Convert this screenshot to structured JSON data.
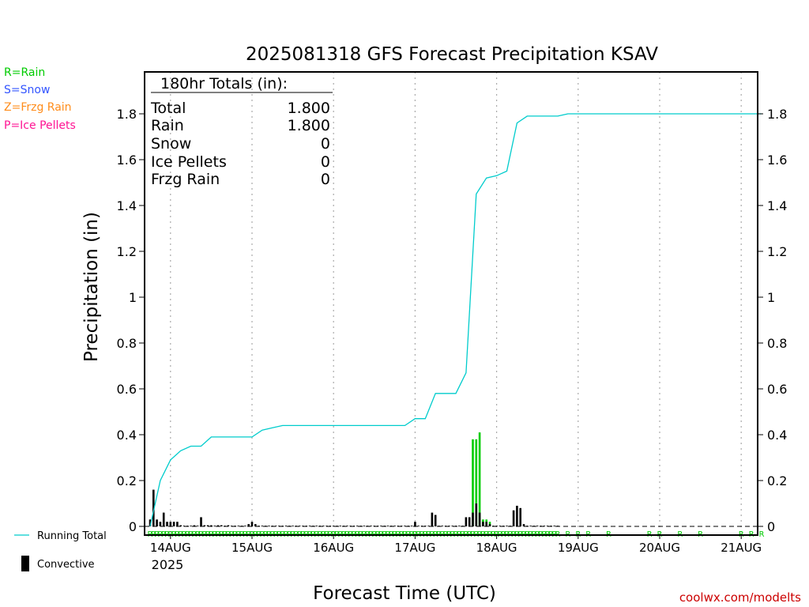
{
  "chart_data": {
    "type": "bar",
    "title": "2025081318 GFS Forecast Precipitation KSAV",
    "xlabel": "Forecast Time (UTC)",
    "ylabel": "Precipitation (in)",
    "ylim": [
      0,
      1.99
    ],
    "y_ticks": [
      "0",
      "0.2",
      "0.4",
      "0.6",
      "0.8",
      "1",
      "1.2",
      "1.4",
      "1.6",
      "1.8"
    ],
    "x_ticks": [
      "14AUG",
      "15AUG",
      "16AUG",
      "17AUG",
      "18AUG",
      "19AUG",
      "20AUG",
      "21AUG"
    ],
    "x_year": "2025",
    "grid": true,
    "legend_types": [
      {
        "label": "R=Rain",
        "color": "#00cc00"
      },
      {
        "label": "S=Snow",
        "color": "#3355ff"
      },
      {
        "label": "Z=Frzg Rain",
        "color": "#ff8c1a"
      },
      {
        "label": "P=Ice Pellets",
        "color": "#ff1493"
      }
    ],
    "legend_series": [
      {
        "label": "Running Total",
        "color": "#00cccc"
      },
      {
        "label": "Convective",
        "color": "#000000"
      }
    ],
    "totals": {
      "header": "180hr Totals (in):",
      "rows": [
        {
          "label": "Total",
          "value": "1.800"
        },
        {
          "label": "Rain",
          "value": "1.800"
        },
        {
          "label": "Snow",
          "value": "0"
        },
        {
          "label": "Ice Pellets",
          "value": "0"
        },
        {
          "label": "Frzg Rain",
          "value": "0"
        }
      ]
    },
    "running_total": {
      "hours": [
        0,
        3,
        6,
        9,
        12,
        15,
        18,
        21,
        24,
        27,
        30,
        33,
        36,
        39,
        42,
        45,
        48,
        51,
        54,
        57,
        60,
        63,
        66,
        69,
        72,
        75,
        78,
        81,
        84,
        87,
        90,
        93,
        96,
        99,
        102,
        105,
        108,
        111,
        114,
        117,
        120,
        123,
        126,
        129,
        132,
        135,
        138,
        141,
        144,
        147,
        150,
        153,
        156,
        159,
        162,
        165,
        168,
        171,
        174,
        177,
        180
      ],
      "values": [
        0.0,
        0.2,
        0.29,
        0.33,
        0.35,
        0.35,
        0.39,
        0.39,
        0.39,
        0.39,
        0.39,
        0.42,
        0.43,
        0.44,
        0.44,
        0.44,
        0.44,
        0.44,
        0.44,
        0.44,
        0.44,
        0.44,
        0.44,
        0.44,
        0.44,
        0.44,
        0.47,
        0.47,
        0.58,
        0.58,
        0.58,
        0.67,
        1.45,
        1.52,
        1.53,
        1.55,
        1.76,
        1.79,
        1.79,
        1.79,
        1.79,
        1.8,
        1.8,
        1.8,
        1.8,
        1.8,
        1.8,
        1.8,
        1.8,
        1.8,
        1.8,
        1.8,
        1.8,
        1.8,
        1.8,
        1.8,
        1.8,
        1.8,
        1.8,
        1.8,
        1.8
      ]
    },
    "bars": {
      "hours": [
        0,
        1,
        2,
        3,
        4,
        5,
        6,
        7,
        8,
        9,
        10,
        11,
        12,
        13,
        14,
        15,
        16,
        17,
        18,
        19,
        20,
        21,
        22,
        23,
        24,
        25,
        26,
        27,
        28,
        29,
        30,
        31,
        32,
        33,
        34,
        35,
        36,
        37,
        38,
        39,
        40,
        41,
        42,
        43,
        44,
        45,
        46,
        47,
        48,
        49,
        50,
        51,
        52,
        53,
        54,
        55,
        56,
        57,
        58,
        59,
        60,
        61,
        62,
        63,
        64,
        65,
        66,
        67,
        68,
        69,
        70,
        71,
        72,
        73,
        74,
        75,
        76,
        77,
        78,
        79,
        80,
        81,
        82,
        83,
        84,
        85,
        86,
        87,
        88,
        89,
        90,
        91,
        92,
        93,
        94,
        95,
        96,
        97,
        98,
        99,
        100,
        101,
        102,
        103,
        104,
        105,
        106,
        107,
        108,
        109,
        110,
        111,
        112,
        113,
        114,
        115,
        116,
        117,
        118,
        119,
        120
      ],
      "total": [
        0.03,
        0.16,
        0.03,
        0.02,
        0.06,
        0.02,
        0.02,
        0.02,
        0.02,
        0.005,
        0.003,
        0.003,
        0.003,
        0.005,
        0.003,
        0.04,
        0.005,
        0.005,
        0.005,
        0.003,
        0.005,
        0.005,
        0.003,
        0.005,
        0.003,
        0.003,
        0.003,
        0.003,
        0.003,
        0.01,
        0.02,
        0.01,
        0.003,
        0.003,
        0.003,
        0.003,
        0.003,
        0.003,
        0.003,
        0.003,
        0.003,
        0.003,
        0.003,
        0.003,
        0.003,
        0.003,
        0.003,
        0.003,
        0.003,
        0.003,
        0.003,
        0.003,
        0.003,
        0.003,
        0.003,
        0.003,
        0.003,
        0.003,
        0.003,
        0.003,
        0.003,
        0.003,
        0.003,
        0.003,
        0.003,
        0.003,
        0.003,
        0.003,
        0.003,
        0.003,
        0.003,
        0.003,
        0.003,
        0.003,
        0.003,
        0.003,
        0.003,
        0.003,
        0.02,
        0.003,
        0.003,
        0.003,
        0.003,
        0.06,
        0.05,
        0.003,
        0.003,
        0.003,
        0.003,
        0.003,
        0.003,
        0.003,
        0.003,
        0.04,
        0.04,
        0.38,
        0.38,
        0.41,
        0.03,
        0.03,
        0.02,
        0.003,
        0.003,
        0.003,
        0.003,
        0.003,
        0.003,
        0.07,
        0.09,
        0.08,
        0.01,
        0.003,
        0.003,
        0.003,
        0.003,
        0.003,
        0.003,
        0.003,
        0.003,
        0.003,
        0.003
      ],
      "convective": [
        0.03,
        0.16,
        0.03,
        0.02,
        0.06,
        0.02,
        0.02,
        0.02,
        0.02,
        0.005,
        0.003,
        0.003,
        0.003,
        0.005,
        0.003,
        0.04,
        0.005,
        0.005,
        0.005,
        0.003,
        0.005,
        0.005,
        0.003,
        0.005,
        0.003,
        0.003,
        0.003,
        0.003,
        0.003,
        0.01,
        0.02,
        0.01,
        0.003,
        0.003,
        0.003,
        0.003,
        0.003,
        0.003,
        0.003,
        0.003,
        0.003,
        0.003,
        0.003,
        0.003,
        0.003,
        0.003,
        0.003,
        0.003,
        0.003,
        0.003,
        0.003,
        0.003,
        0.003,
        0.003,
        0.003,
        0.003,
        0.003,
        0.003,
        0.003,
        0.003,
        0.003,
        0.003,
        0.003,
        0.003,
        0.003,
        0.003,
        0.003,
        0.003,
        0.003,
        0.003,
        0.003,
        0.003,
        0.003,
        0.003,
        0.003,
        0.003,
        0.003,
        0.003,
        0.02,
        0.003,
        0.003,
        0.003,
        0.003,
        0.06,
        0.05,
        0.003,
        0.003,
        0.003,
        0.003,
        0.003,
        0.003,
        0.003,
        0.003,
        0.04,
        0.04,
        0.06,
        0.1,
        0.06,
        0.02,
        0.02,
        0.01,
        0.003,
        0.003,
        0.003,
        0.003,
        0.003,
        0.003,
        0.07,
        0.09,
        0.08,
        0.01,
        0.003,
        0.003,
        0.003,
        0.003,
        0.003,
        0.003,
        0.003,
        0.003,
        0.003,
        0.003
      ]
    },
    "rain_markers": {
      "letter": "R",
      "hours": [
        0,
        1,
        2,
        3,
        4,
        5,
        6,
        7,
        8,
        9,
        10,
        11,
        12,
        13,
        14,
        15,
        16,
        17,
        18,
        19,
        20,
        21,
        22,
        23,
        24,
        25,
        26,
        27,
        28,
        29,
        30,
        31,
        32,
        33,
        34,
        35,
        36,
        37,
        38,
        39,
        40,
        41,
        42,
        43,
        44,
        45,
        46,
        47,
        48,
        49,
        50,
        51,
        52,
        53,
        54,
        55,
        56,
        57,
        58,
        59,
        60,
        61,
        62,
        63,
        64,
        65,
        66,
        67,
        68,
        69,
        70,
        71,
        72,
        73,
        74,
        75,
        76,
        77,
        78,
        79,
        80,
        81,
        82,
        83,
        84,
        85,
        86,
        87,
        88,
        89,
        90,
        91,
        92,
        93,
        94,
        95,
        96,
        97,
        98,
        99,
        100,
        101,
        102,
        103,
        104,
        105,
        106,
        107,
        108,
        109,
        110,
        111,
        112,
        113,
        114,
        115,
        116,
        117,
        118,
        119,
        120,
        123,
        126,
        129,
        135,
        147,
        150,
        156,
        162,
        174,
        177,
        180
      ]
    }
  },
  "watermark": "coolwx.com/modelts"
}
